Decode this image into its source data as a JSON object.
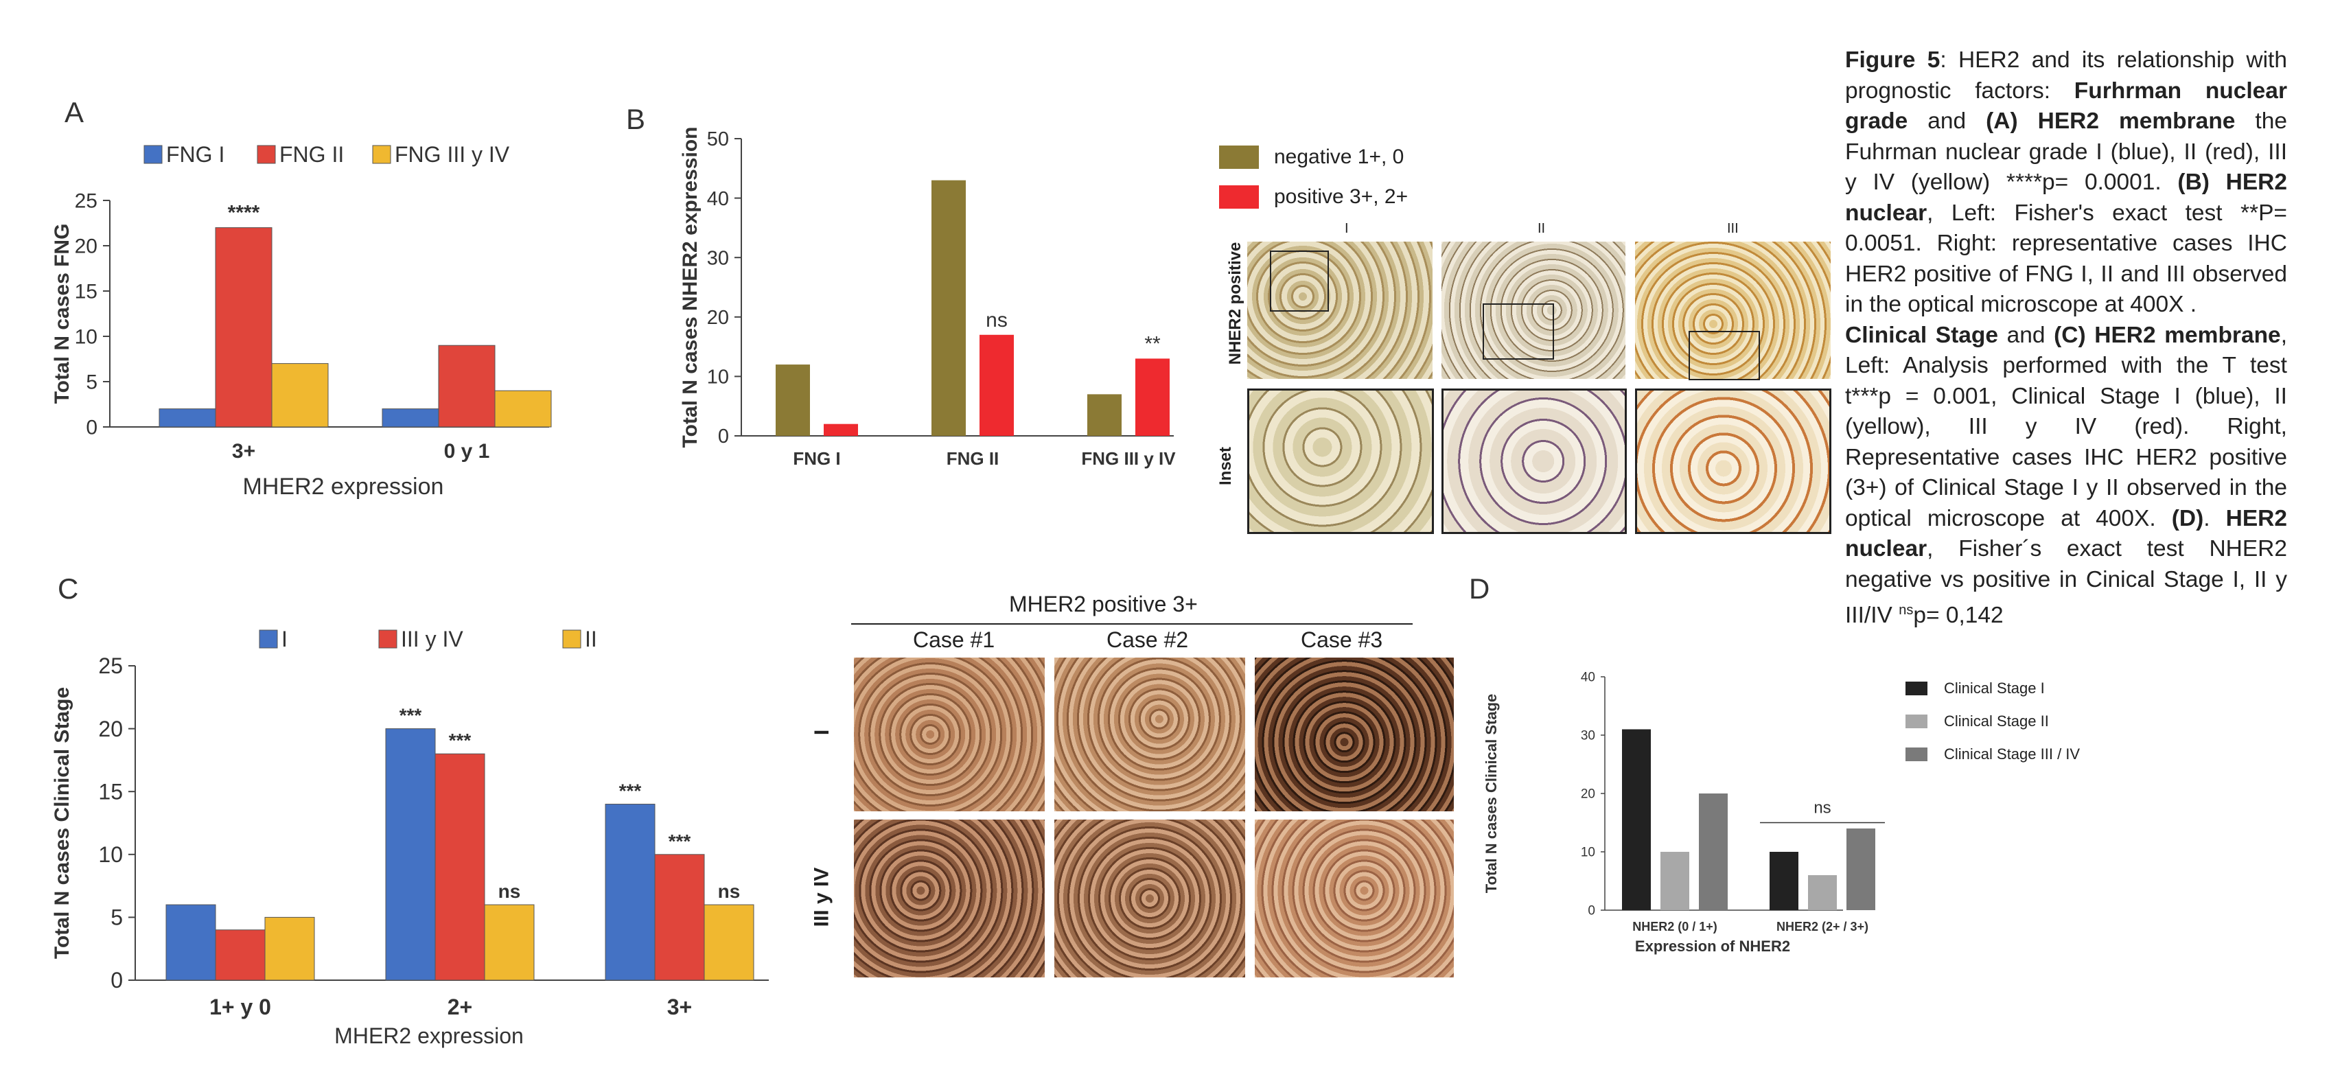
{
  "panels": {
    "a": {
      "letter": "A"
    },
    "b": {
      "letter": "B"
    },
    "c": {
      "letter": "C"
    },
    "d": {
      "letter": "D"
    }
  },
  "colors": {
    "blue": "#4472c4",
    "red": "#e0453b",
    "yellow": "#f0b830",
    "olive": "#8b7a35",
    "brightred": "#ee2a2f",
    "black": "#222222",
    "lightgray": "#a8a8a8",
    "midgray": "#7a7a7a"
  },
  "chart_data": [
    {
      "id": "A",
      "type": "bar",
      "categories": [
        "3+",
        "0 y 1"
      ],
      "series": [
        {
          "name": "FNG I",
          "values": [
            2,
            2
          ]
        },
        {
          "name": "FNG II",
          "values": [
            22,
            9
          ]
        },
        {
          "name": "FNG III y IV",
          "values": [
            7,
            4
          ]
        }
      ],
      "annotations": [
        "****",
        ""
      ],
      "xlabel": "MHER2 expression",
      "ylabel": "Total N cases FNG",
      "ylim": [
        0,
        25
      ],
      "yticks": [
        0,
        5,
        10,
        15,
        20,
        25
      ],
      "legend": "top"
    },
    {
      "id": "B",
      "type": "bar",
      "categories": [
        "FNG I",
        "FNG  II",
        "FNG  III y IV"
      ],
      "series": [
        {
          "name": "negative 1+, 0",
          "values": [
            12,
            43,
            7
          ]
        },
        {
          "name": "positive 3+, 2+",
          "values": [
            2,
            17,
            13
          ]
        }
      ],
      "annotations": [
        "",
        "ns",
        "**"
      ],
      "ylabel": "Total N cases NHER2 expression",
      "ylim": [
        0,
        50
      ],
      "yticks": [
        0,
        10,
        20,
        30,
        40,
        50
      ],
      "legend": "right"
    },
    {
      "id": "C",
      "type": "bar",
      "categories": [
        "1+ y 0",
        "2+",
        "3+"
      ],
      "series": [
        {
          "name": "I",
          "values": [
            6,
            20,
            14
          ]
        },
        {
          "name": "III y IV",
          "values": [
            4,
            18,
            10
          ]
        },
        {
          "name": "II",
          "values": [
            5,
            6,
            6
          ]
        }
      ],
      "annotations": [
        [
          "",
          "",
          ""
        ],
        [
          "***",
          "***",
          "ns"
        ],
        [
          "***",
          "***",
          "ns"
        ]
      ],
      "xlabel": "MHER2 expression",
      "ylabel": "Total N cases Clinical Stage",
      "ylim": [
        0,
        25
      ],
      "yticks": [
        0,
        5,
        10,
        15,
        20,
        25
      ],
      "legend": "top"
    },
    {
      "id": "D",
      "type": "bar",
      "categories": [
        "NHER2 (0 / 1+)",
        "NHER2 (2+ / 3+)"
      ],
      "series": [
        {
          "name": "Clinical Stage I",
          "values": [
            31,
            10
          ]
        },
        {
          "name": "Clinical Stage II",
          "values": [
            10,
            6
          ]
        },
        {
          "name": "Clinical Stage III / IV",
          "values": [
            20,
            14
          ]
        }
      ],
      "annotations": [
        "",
        "ns"
      ],
      "xlabel": "Expression of NHER2",
      "ylabel": "Total N cases Clinical Stage",
      "ylim": [
        0,
        40
      ],
      "yticks": [
        0,
        10,
        20,
        30,
        40
      ],
      "legend": "right"
    }
  ],
  "micro_b": {
    "cols": [
      "I",
      "II",
      "III"
    ],
    "rows": [
      "NHER2 positive",
      "Inset"
    ]
  },
  "micro_c": {
    "title": "MHER2 positive 3+",
    "cols": [
      "Case #1",
      "Case #2",
      "Case #3"
    ],
    "rows": [
      "I",
      "III y IV"
    ]
  },
  "caption": {
    "fig": "Figure 5",
    "t1": ": HER2 and its relationship with prognostic factors: ",
    "b1": "Furhrman nuclear grade",
    "t2": " and ",
    "b2": "(A) HER2 membrane",
    "t3": " the Fuhrman nuclear grade I (blue), II (red), III y IV (yellow) ****p= 0.0001. ",
    "b3": "(B) HER2 nuclear",
    "t4": ", Left: Fisher's exact test **P= 0.0051. Right: representative cases IHC HER2 positive of FNG I, II and III observed in the optical microscope at 400X .",
    "b4": "Clinical Stage",
    "t5": " and ",
    "b5": "(C) HER2 membrane",
    "t6": ", Left: Analysis performed with the T test t***p = 0.001, Clinical Stage I (blue), II (yellow), III y IV (red). Right, Representative cases IHC HER2 positive (3+) of Clinical Stage I y II observed in the optical microscope at 400X. ",
    "b6": "(D)",
    "t7": ". ",
    "b7": "HER2 nuclear",
    "t8": ", Fisher´s exact test NHER2 negative vs positive in Cinical Stage I, II y III/IV ",
    "sup": "ns",
    "t9": "p= 0,142"
  }
}
